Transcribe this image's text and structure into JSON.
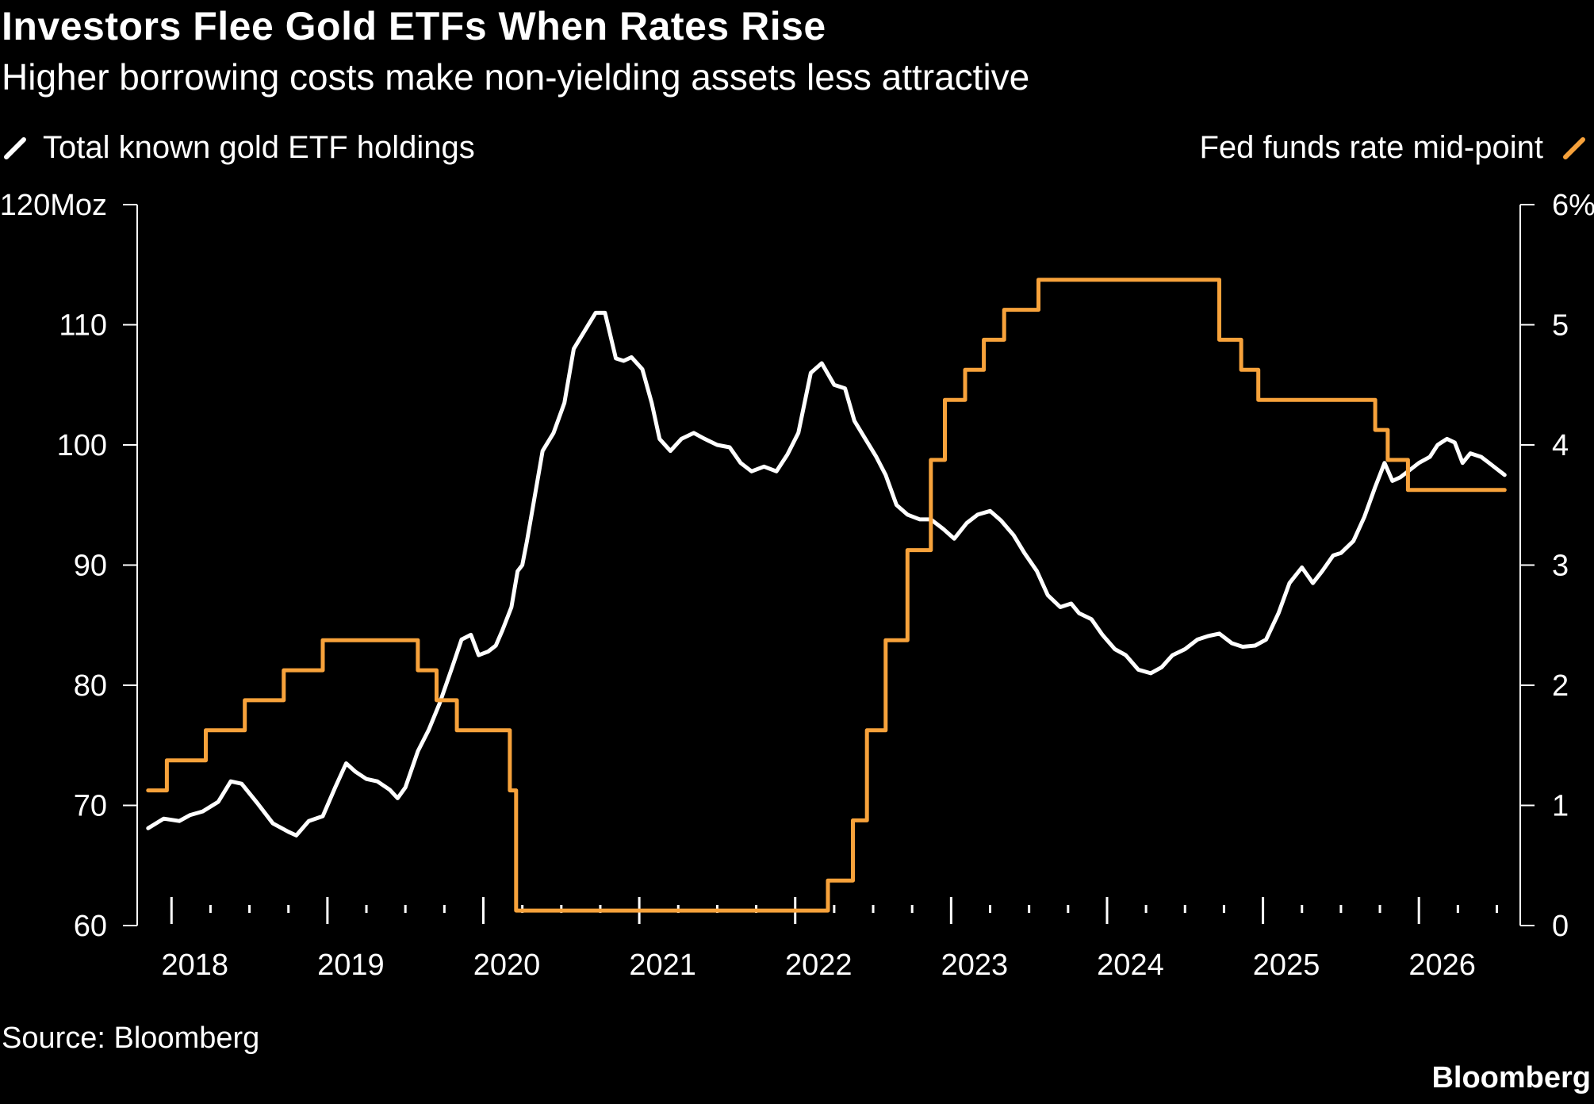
{
  "header": {
    "title": "Investors Flee Gold ETFs When Rates Rise",
    "subtitle": "Higher borrowing costs make non-yielding assets less attractive"
  },
  "legend": {
    "left_label": "Total known gold ETF holdings",
    "right_label": "Fed funds rate mid-point"
  },
  "footer": {
    "source": "Source: Bloomberg",
    "brand": "Bloomberg"
  },
  "colors": {
    "background": "#000000",
    "holdings": "#ffffff",
    "rate": "#f7a23b",
    "axis": "#ffffff"
  },
  "chart_data": {
    "type": "line",
    "title": "Investors Flee Gold ETFs When Rates Rise",
    "subtitle": "Higher borrowing costs make non-yielding assets less attractive",
    "x_axis": {
      "type": "time",
      "range": [
        2017.78,
        2026.65
      ],
      "tick_labels": [
        "2018",
        "2019",
        "2020",
        "2021",
        "2022",
        "2023",
        "2024",
        "2025",
        "2026"
      ],
      "tick_label_positions": [
        2018.15,
        2019.15,
        2020.15,
        2021.15,
        2022.15,
        2023.15,
        2024.15,
        2025.15,
        2026.15
      ]
    },
    "y_axis_left": {
      "unit": "Moz",
      "range": [
        60,
        120
      ],
      "ticks": [
        60,
        70,
        80,
        90,
        100,
        110,
        120
      ],
      "tick_labels": [
        "60",
        "70",
        "80",
        "90",
        "100",
        "110",
        "120Moz"
      ]
    },
    "y_axis_right": {
      "unit": "%",
      "range": [
        0,
        6
      ],
      "ticks": [
        0,
        1,
        2,
        3,
        4,
        5,
        6
      ],
      "tick_labels": [
        "0",
        "1",
        "2",
        "3",
        "4",
        "5",
        "6%"
      ]
    },
    "grid": false,
    "legend_placement": "top",
    "series": [
      {
        "name": "Total known gold ETF holdings",
        "axis": "left",
        "color": "#ffffff",
        "x": [
          2017.85,
          2017.95,
          2018.05,
          2018.12,
          2018.2,
          2018.3,
          2018.38,
          2018.45,
          2018.55,
          2018.65,
          2018.75,
          2018.8,
          2018.88,
          2018.97,
          2019.05,
          2019.12,
          2019.18,
          2019.25,
          2019.32,
          2019.4,
          2019.45,
          2019.5,
          2019.58,
          2019.65,
          2019.72,
          2019.8,
          2019.86,
          2019.92,
          2019.97,
          2020.03,
          2020.08,
          2020.12,
          2020.18,
          2020.22,
          2020.25,
          2020.28,
          2020.32,
          2020.38,
          2020.45,
          2020.52,
          2020.58,
          2020.65,
          2020.72,
          2020.78,
          2020.85,
          2020.9,
          2020.95,
          2021.02,
          2021.08,
          2021.13,
          2021.2,
          2021.27,
          2021.35,
          2021.42,
          2021.5,
          2021.58,
          2021.65,
          2021.72,
          2021.8,
          2021.88,
          2021.95,
          2022.02,
          2022.1,
          2022.17,
          2022.25,
          2022.32,
          2022.38,
          2022.45,
          2022.52,
          2022.58,
          2022.65,
          2022.72,
          2022.8,
          2022.87,
          2022.95,
          2023.02,
          2023.1,
          2023.17,
          2023.25,
          2023.32,
          2023.4,
          2023.47,
          2023.55,
          2023.62,
          2023.7,
          2023.77,
          2023.82,
          2023.9,
          2023.97,
          2024.05,
          2024.12,
          2024.2,
          2024.28,
          2024.35,
          2024.42,
          2024.5,
          2024.58,
          2024.65,
          2024.72,
          2024.8,
          2024.87,
          2024.95,
          2025.02,
          2025.1,
          2025.17,
          2025.25,
          2025.32,
          2025.38,
          2025.45,
          2025.5,
          2025.58,
          2025.65,
          2025.72,
          2025.78,
          2025.83,
          2025.88,
          2025.95,
          2026.0,
          2026.07,
          2026.12,
          2026.18,
          2026.23,
          2026.28,
          2026.33,
          2026.4,
          2026.45,
          2026.5,
          2026.55
        ],
        "y": [
          68.1,
          68.9,
          68.7,
          69.2,
          69.5,
          70.3,
          72.0,
          71.8,
          70.2,
          68.5,
          67.8,
          67.5,
          68.7,
          69.1,
          71.5,
          73.5,
          72.8,
          72.2,
          72.0,
          71.3,
          70.6,
          71.5,
          74.5,
          76.3,
          78.5,
          81.5,
          83.8,
          84.2,
          82.5,
          82.8,
          83.3,
          84.5,
          86.5,
          89.5,
          90.0,
          92.0,
          95.0,
          99.5,
          101.0,
          103.5,
          108.0,
          109.5,
          111.0,
          111.0,
          107.2,
          107.0,
          107.3,
          106.3,
          103.5,
          100.5,
          99.5,
          100.5,
          101.0,
          100.5,
          100.0,
          99.8,
          98.5,
          97.8,
          98.2,
          97.8,
          99.2,
          101.0,
          106.0,
          106.8,
          105.0,
          104.7,
          102.0,
          100.5,
          99.0,
          97.5,
          95.0,
          94.2,
          93.8,
          93.8,
          93.0,
          92.2,
          93.5,
          94.2,
          94.5,
          93.7,
          92.5,
          91.0,
          89.5,
          87.5,
          86.5,
          86.8,
          86.0,
          85.5,
          84.2,
          83.0,
          82.5,
          81.3,
          81.0,
          81.5,
          82.5,
          83.0,
          83.8,
          84.1,
          84.3,
          83.5,
          83.2,
          83.3,
          83.8,
          86.0,
          88.5,
          89.8,
          88.5,
          89.5,
          90.8,
          91.0,
          92.0,
          94.0,
          96.5,
          98.5,
          97.0,
          97.3,
          98.0,
          98.5,
          99.0,
          100.0,
          100.5,
          100.2,
          98.5,
          99.3,
          99.0,
          98.5,
          98.0,
          97.5
        ]
      },
      {
        "name": "Fed funds rate mid-point",
        "axis": "right",
        "color": "#f7a23b",
        "shape": "step",
        "x": [
          2017.85,
          2017.97,
          2018.22,
          2018.47,
          2018.72,
          2018.97,
          2019.58,
          2019.7,
          2019.83,
          2020.17,
          2020.21,
          2021.0,
          2022.21,
          2022.37,
          2022.46,
          2022.58,
          2022.72,
          2022.87,
          2022.96,
          2023.09,
          2023.21,
          2023.34,
          2023.56,
          2024.72,
          2024.86,
          2024.97,
          2025.72,
          2025.8,
          2025.93,
          2026.55
        ],
        "y": [
          1.125,
          1.375,
          1.625,
          1.875,
          2.125,
          2.375,
          2.125,
          1.875,
          1.625,
          1.125,
          0.125,
          0.125,
          0.375,
          0.875,
          1.625,
          2.375,
          3.125,
          3.875,
          4.375,
          4.625,
          4.875,
          5.125,
          5.375,
          4.875,
          4.625,
          4.375,
          4.125,
          3.875,
          3.625,
          3.625
        ]
      }
    ]
  }
}
